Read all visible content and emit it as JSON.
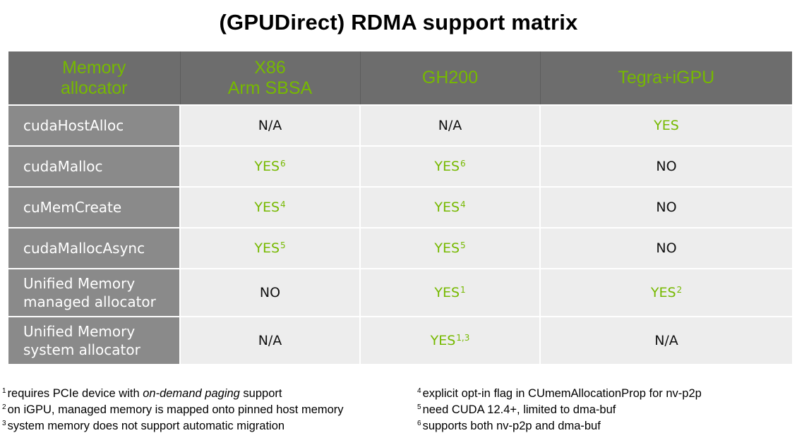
{
  "title": "(GPUDirect) RDMA support matrix",
  "header": {
    "col0_line1": "Memory",
    "col0_line2": "allocator",
    "col1_line1": "X86",
    "col1_line2": "Arm SBSA",
    "col2": "GH200",
    "col3": "Tegra+iGPU"
  },
  "rows": [
    {
      "label1": "cudaHostAlloc",
      "label2": "",
      "x86": {
        "text": "N/A",
        "sup": ""
      },
      "gh200": {
        "text": "N/A",
        "sup": ""
      },
      "tegra": {
        "text": "YES",
        "sup": ""
      }
    },
    {
      "label1": "cudaMalloc",
      "label2": "",
      "x86": {
        "text": "YES",
        "sup": "6"
      },
      "gh200": {
        "text": "YES",
        "sup": "6"
      },
      "tegra": {
        "text": "NO",
        "sup": ""
      }
    },
    {
      "label1": "cuMemCreate",
      "label2": "",
      "x86": {
        "text": "YES",
        "sup": "4"
      },
      "gh200": {
        "text": "YES",
        "sup": "4"
      },
      "tegra": {
        "text": "NO",
        "sup": ""
      }
    },
    {
      "label1": "cudaMallocAsync",
      "label2": "",
      "x86": {
        "text": "YES",
        "sup": "5"
      },
      "gh200": {
        "text": "YES",
        "sup": "5"
      },
      "tegra": {
        "text": "NO",
        "sup": ""
      }
    },
    {
      "label1": "Unified Memory",
      "label2": "managed allocator",
      "x86": {
        "text": "NO",
        "sup": ""
      },
      "gh200": {
        "text": "YES",
        "sup": "1"
      },
      "tegra": {
        "text": "YES",
        "sup": "2"
      }
    },
    {
      "label1": "Unified Memory",
      "label2": "system allocator",
      "x86": {
        "text": "N/A",
        "sup": ""
      },
      "gh200": {
        "text": "YES",
        "sup": "1,3"
      },
      "tegra": {
        "text": "N/A",
        "sup": ""
      }
    }
  ],
  "footnotes_left": {
    "n1_num": "1",
    "n1_pre": "requires PCIe device with ",
    "n1_em": "on-demand paging",
    "n1_post": " support",
    "n2_num": "2",
    "n2_text": "on iGPU, managed memory is mapped onto pinned host memory",
    "n3_num": "3",
    "n3_text": "system memory does not support automatic migration"
  },
  "footnotes_right": {
    "n4_num": "4",
    "n4_text": "explicit opt-in flag in CUmemAllocationProp for nv-p2p",
    "n5_num": "5",
    "n5_text": "need CUDA 12.4+, limited to dma-buf",
    "n6_num": "6",
    "n6_text": "supports both nv-p2p and dma-buf"
  },
  "colors": {
    "accent_green": "#76b900",
    "header_bg": "#6d6d6d",
    "rowlabel_bg": "#8a8a8a",
    "cell_bg": "#ededed"
  }
}
